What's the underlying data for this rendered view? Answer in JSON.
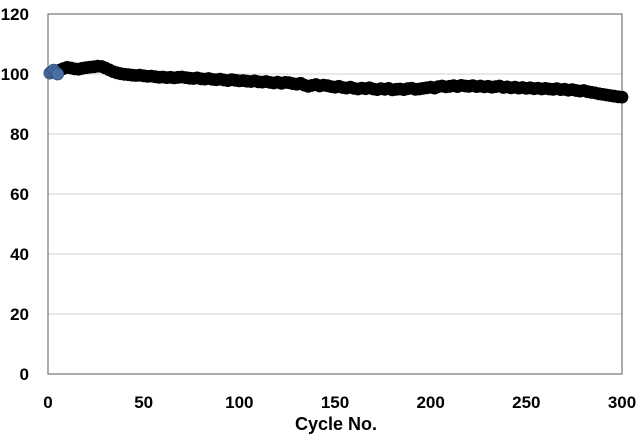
{
  "chart_data": {
    "type": "scatter",
    "title": "",
    "xlabel": "Cycle No.",
    "ylabel": "",
    "xlim": [
      0,
      300
    ],
    "ylim": [
      0,
      120
    ],
    "x_ticks": [
      0,
      50,
      100,
      150,
      200,
      250,
      300
    ],
    "y_ticks": [
      0,
      20,
      40,
      60,
      80,
      100,
      120
    ],
    "x_tick_labels": [
      "0",
      "50",
      "100",
      "150",
      "200",
      "250",
      "300"
    ],
    "y_tick_labels": [
      "0",
      "20",
      "40",
      "60",
      "80",
      "100",
      "120"
    ],
    "grid": "horizontal",
    "legend": "none",
    "series": [
      {
        "color": "#4a6fa5",
        "marker": "circle",
        "x": [
          1,
          2,
          3,
          4,
          5
        ],
        "y": [
          100.3,
          100.8,
          101.3,
          100.5,
          100.0
        ]
      },
      {
        "color": "#000000",
        "marker": "circle",
        "x": [
          6,
          8,
          10,
          12,
          14,
          16,
          18,
          20,
          22,
          24,
          26,
          28,
          30,
          32,
          34,
          36,
          38,
          40,
          42,
          44,
          46,
          48,
          50,
          52,
          54,
          56,
          58,
          60,
          62,
          64,
          66,
          68,
          70,
          72,
          74,
          76,
          78,
          80,
          82,
          84,
          86,
          88,
          90,
          92,
          94,
          96,
          98,
          100,
          102,
          104,
          106,
          108,
          110,
          112,
          114,
          116,
          118,
          120,
          122,
          124,
          126,
          128,
          130,
          132,
          134,
          136,
          138,
          140,
          142,
          144,
          146,
          148,
          150,
          152,
          154,
          156,
          158,
          160,
          162,
          164,
          166,
          168,
          170,
          172,
          174,
          176,
          178,
          180,
          182,
          184,
          186,
          188,
          190,
          192,
          194,
          196,
          198,
          200,
          202,
          204,
          206,
          208,
          210,
          212,
          214,
          216,
          218,
          220,
          222,
          224,
          226,
          228,
          230,
          232,
          234,
          236,
          238,
          240,
          242,
          244,
          246,
          248,
          250,
          252,
          254,
          256,
          258,
          260,
          262,
          264,
          266,
          268,
          270,
          272,
          274,
          276,
          278,
          280,
          282,
          284,
          286,
          288,
          290,
          292,
          294,
          296,
          298,
          300
        ],
        "y": [
          101.3,
          101.8,
          102.2,
          102.0,
          101.7,
          101.6,
          101.9,
          102.1,
          102.3,
          102.4,
          102.6,
          102.5,
          102.0,
          101.4,
          100.8,
          100.4,
          100.1,
          99.9,
          99.8,
          99.6,
          99.5,
          99.6,
          99.4,
          99.2,
          99.3,
          99.1,
          98.9,
          99.0,
          98.8,
          98.9,
          98.7,
          98.9,
          99.0,
          98.8,
          98.6,
          98.5,
          98.7,
          98.4,
          98.3,
          98.5,
          98.2,
          98.1,
          98.3,
          98.0,
          97.8,
          98.1,
          97.9,
          97.7,
          97.8,
          97.6,
          97.5,
          97.7,
          97.4,
          97.3,
          97.5,
          97.2,
          97.0,
          97.3,
          96.9,
          97.2,
          97.1,
          96.8,
          96.6,
          96.9,
          96.3,
          95.9,
          96.2,
          96.5,
          96.0,
          96.3,
          96.1,
          95.8,
          95.6,
          95.9,
          95.5,
          95.3,
          95.6,
          95.2,
          95.0,
          95.3,
          95.1,
          95.4,
          95.0,
          94.8,
          95.1,
          94.9,
          95.2,
          94.7,
          94.9,
          95.0,
          94.8,
          95.1,
          95.3,
          94.9,
          95.0,
          95.2,
          95.4,
          95.6,
          95.3,
          95.8,
          96.0,
          95.7,
          95.9,
          96.1,
          95.8,
          96.2,
          96.0,
          95.9,
          96.1,
          95.8,
          96.0,
          95.7,
          95.9,
          95.6,
          95.8,
          96.0,
          95.5,
          95.7,
          95.4,
          95.6,
          95.3,
          95.5,
          95.2,
          95.4,
          95.1,
          95.3,
          95.0,
          95.2,
          95.0,
          94.9,
          95.1,
          94.8,
          94.9,
          94.6,
          94.8,
          94.5,
          94.3,
          94.5,
          94.1,
          93.9,
          93.7,
          93.4,
          93.2,
          93.0,
          92.8,
          92.6,
          92.4,
          92.3
        ]
      }
    ]
  }
}
